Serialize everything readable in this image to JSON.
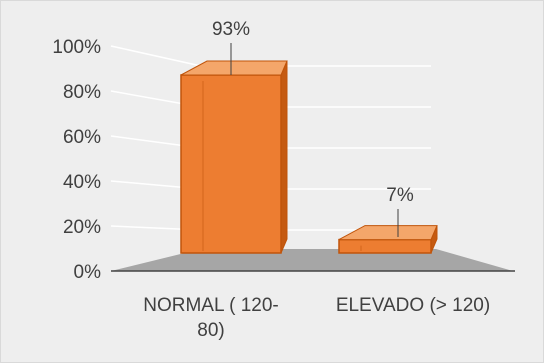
{
  "chart_data": {
    "type": "bar",
    "style": "3d-column",
    "categories": [
      "NORMAL ( 120-80)",
      "ELEVADO (> 120)"
    ],
    "category_label_lines": [
      [
        "NORMAL ( 120-",
        "80)"
      ],
      [
        "ELEVADO (> 120)"
      ]
    ],
    "values": [
      93,
      7
    ],
    "data_labels": [
      "93%",
      "7%"
    ],
    "yticks": [
      "0%",
      "20%",
      "40%",
      "60%",
      "80%",
      "100%"
    ],
    "ytick_values": [
      0,
      20,
      40,
      60,
      80,
      100
    ],
    "ylim": [
      0,
      100
    ],
    "grid": true,
    "title": "",
    "xlabel": "",
    "ylabel": "",
    "colors": {
      "bar_front": "#ed7d31",
      "bar_side": "#c55a11",
      "bar_top": "#f4a66a",
      "bar_edge": "#c0540a",
      "floor": "#a6a6a6",
      "background": "#eeeeee",
      "gridline": "#ffffff",
      "text": "#404040"
    }
  }
}
